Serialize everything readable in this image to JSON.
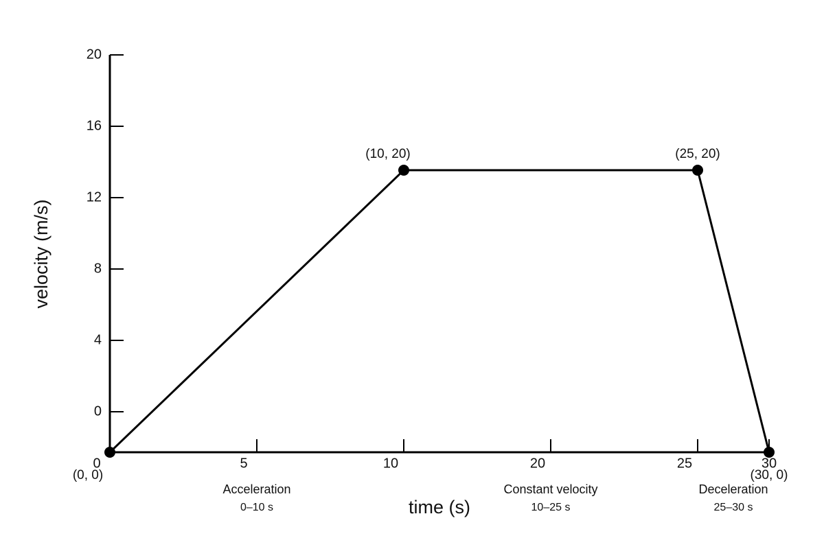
{
  "axes": {
    "y_title": "velocity (m/s)",
    "x_title": "time (s)",
    "y_tick_labels": [
      20,
      16,
      12,
      8,
      4,
      0
    ],
    "x_tick_labels": [
      0,
      5,
      10,
      20,
      25,
      30
    ]
  },
  "points": [
    {
      "label": "(0, 0)"
    },
    {
      "label": "(10, 20)"
    },
    {
      "label": "(25, 20)"
    },
    {
      "label": "(30, 0)"
    }
  ],
  "phases": [
    {
      "name": "Acceleration",
      "range": "0–10 s"
    },
    {
      "name": "Constant velocity",
      "range": "10–25 s"
    },
    {
      "name": "Deceleration",
      "range": "25–30 s"
    }
  ]
}
